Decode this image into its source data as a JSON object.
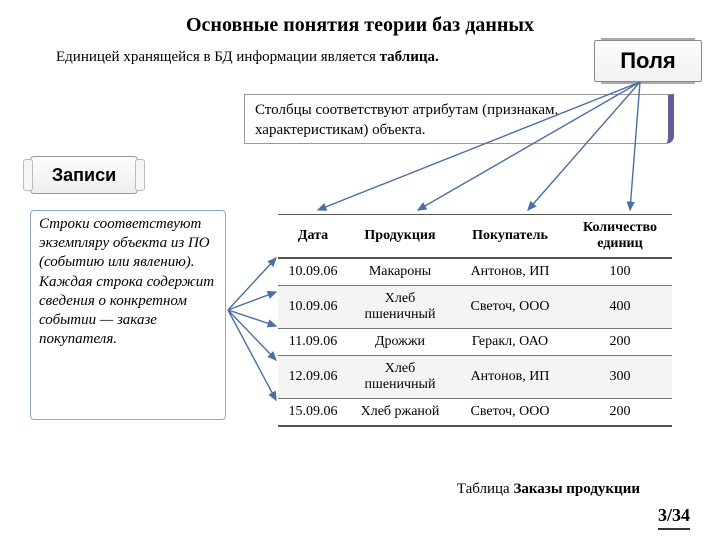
{
  "title": "Основные понятия теории баз данных",
  "subtitle_pre": "Единицей хранящейся в БД информации является ",
  "subtitle_bold": "таблица.",
  "polya_label": "Поля",
  "zapisi_label": "Записи",
  "cols_text": "Столбцы соответствуют атрибутам (признакам, характеристикам) объекта.",
  "rows_text": "Строки соответствуют экземпляру объекта из ПО (событию или явлению).\nКаждая строка содержит сведения о конкретном событии — заказе покупателя.",
  "table": {
    "headers": [
      "Дата",
      "Продукция",
      "Покупатель",
      "Количество единиц"
    ],
    "rows": [
      [
        "10.09.06",
        "Макароны",
        "Антонов, ИП",
        "100"
      ],
      [
        "10.09.06",
        "Хлеб пшеничный",
        "Светоч, ООО",
        "400"
      ],
      [
        "11.09.06",
        "Дрожжи",
        "Геракл, ОАО",
        "200"
      ],
      [
        "12.09.06",
        "Хлеб пшеничный",
        "Антонов, ИП",
        "300"
      ],
      [
        "15.09.06",
        "Хлеб ржаной",
        "Светоч, ООО",
        "200"
      ]
    ]
  },
  "caption_pre": "Таблица ",
  "caption_bold": "Заказы продукции",
  "page": "3/34",
  "colors": {
    "arrow": "#4a6fa5",
    "accent_border": "#6a5a9a",
    "rows_border": "#8ea6c8"
  }
}
